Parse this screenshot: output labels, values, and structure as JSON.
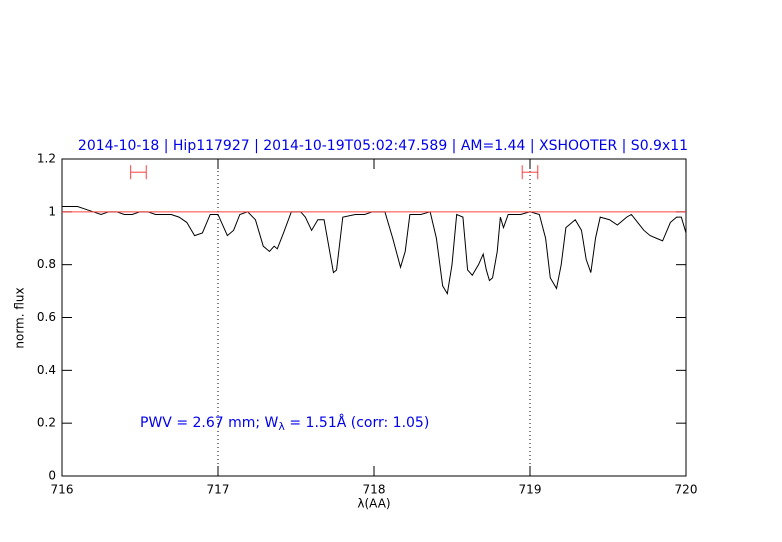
{
  "chart_data": {
    "type": "line",
    "title": "2014-10-18 | Hip117927 | 2014-10-19T05:02:47.589 | AM=1.44 | XSHOOTER | S0.9x11",
    "xlabel": "λ(AA)",
    "ylabel": "norm. flux",
    "annotation": [
      "PWV = 2.67 mm; W",
      "λ",
      " = 1.51Å (corr: 1.05)"
    ],
    "xlim": [
      716,
      720
    ],
    "ylim": [
      0,
      1.2
    ],
    "xticks": [
      716,
      717,
      718,
      719,
      720
    ],
    "yticks": [
      0,
      0.2,
      0.4,
      0.6,
      0.8,
      1,
      1.2
    ],
    "vlines": [
      717,
      719
    ],
    "vline_color": "#000000",
    "intervals": [
      {
        "x": [
          716.44,
          716.54
        ],
        "y": 1.15
      },
      {
        "x": [
          718.95,
          719.05
        ],
        "y": 1.15
      }
    ],
    "interval_color": "#ff4040",
    "series": [
      {
        "color": "#000000",
        "x": [
          716.0,
          716.05,
          716.1,
          716.15,
          716.2,
          716.25,
          716.3,
          716.35,
          716.4,
          716.45,
          716.5,
          716.55,
          716.6,
          716.65,
          716.7,
          716.75,
          716.8,
          716.85,
          716.9,
          716.95,
          717.0,
          717.03,
          717.06,
          717.1,
          717.14,
          717.19,
          717.24,
          717.29,
          717.33,
          717.36,
          717.38,
          717.42,
          717.47,
          717.53,
          717.56,
          717.6,
          717.64,
          717.68,
          717.74,
          717.76,
          717.8,
          717.88,
          717.94,
          717.99,
          718.07,
          718.12,
          718.17,
          718.2,
          718.23,
          718.3,
          718.36,
          718.4,
          718.44,
          718.47,
          718.5,
          718.53,
          718.57,
          718.6,
          718.63,
          718.67,
          718.7,
          718.72,
          718.74,
          718.76,
          718.79,
          718.81,
          718.83,
          718.86,
          718.94,
          719.0,
          719.06,
          719.1,
          719.13,
          719.17,
          719.2,
          719.23,
          719.29,
          719.33,
          719.36,
          719.39,
          719.42,
          719.45,
          719.51,
          719.56,
          719.62,
          719.65,
          719.69,
          719.73,
          719.77,
          719.81,
          719.85,
          719.9,
          719.94,
          719.97,
          720.0
        ],
        "values": [
          1.02,
          1.02,
          1.02,
          1.01,
          1.0,
          0.99,
          1.0,
          1.0,
          0.99,
          0.99,
          1.0,
          1.0,
          0.99,
          0.99,
          0.99,
          0.98,
          0.96,
          0.91,
          0.92,
          0.99,
          0.99,
          0.95,
          0.91,
          0.93,
          0.99,
          1.0,
          0.97,
          0.87,
          0.85,
          0.87,
          0.86,
          0.92,
          1.0,
          1.0,
          0.98,
          0.93,
          0.97,
          0.97,
          0.77,
          0.78,
          0.98,
          0.99,
          0.99,
          1.0,
          1.0,
          0.9,
          0.79,
          0.85,
          0.99,
          0.99,
          1.0,
          0.9,
          0.72,
          0.69,
          0.8,
          0.99,
          0.98,
          0.78,
          0.76,
          0.8,
          0.84,
          0.78,
          0.74,
          0.75,
          0.85,
          0.98,
          0.94,
          0.99,
          0.99,
          1.0,
          0.99,
          0.9,
          0.75,
          0.71,
          0.8,
          0.94,
          0.97,
          0.93,
          0.82,
          0.77,
          0.9,
          0.98,
          0.97,
          0.95,
          0.98,
          0.99,
          0.96,
          0.93,
          0.91,
          0.9,
          0.89,
          0.96,
          0.98,
          0.98,
          0.92
        ]
      },
      {
        "color": "#ff4040",
        "x": [
          716,
          720
        ],
        "values": [
          1,
          1
        ]
      }
    ]
  }
}
